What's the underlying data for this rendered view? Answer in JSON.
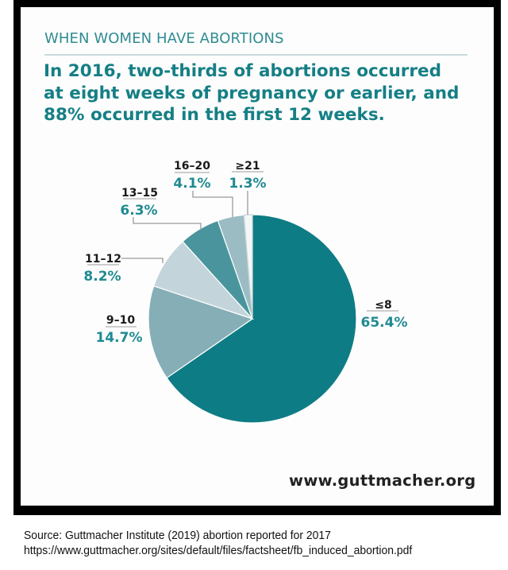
{
  "infographic": {
    "kicker": "WHEN WOMEN HAVE ABORTIONS",
    "headline_lines": [
      "In 2016, two-thirds of abortions occurred",
      "at eight weeks of pregnancy or earlier, and",
      "88% occurred in the first 12 weeks."
    ],
    "website": "www.guttmacher.org"
  },
  "source": {
    "line1": "Source: Guttmacher Institute (2019) abortion reported for 2017",
    "line2": "https://www.guttmacher.org/sites/default/files/factsheet/fb_induced_abortion.pdf"
  },
  "colors": {
    "accent": "#157f85",
    "frame": "#000000"
  },
  "chart_data": {
    "type": "pie",
    "title": "In 2016, two-thirds of abortions occurred at eight weeks of pregnancy or earlier, and 88% occurred in the first 12 weeks.",
    "unit": "weeks of pregnancy",
    "start": "top",
    "direction": "clockwise",
    "categories": [
      "≤8",
      "9–10",
      "11–12",
      "13–15",
      "16–20",
      "≥21"
    ],
    "values": [
      65.4,
      14.7,
      8.2,
      6.3,
      4.1,
      1.3
    ],
    "labels": [
      "65.4%",
      "14.7%",
      "8.2%",
      "6.3%",
      "4.1%",
      "1.3%"
    ],
    "colors": [
      "#0e7c85",
      "#86aeb6",
      "#c3d5da",
      "#4a959d",
      "#9bbcc3",
      "#f4f7f8"
    ]
  }
}
